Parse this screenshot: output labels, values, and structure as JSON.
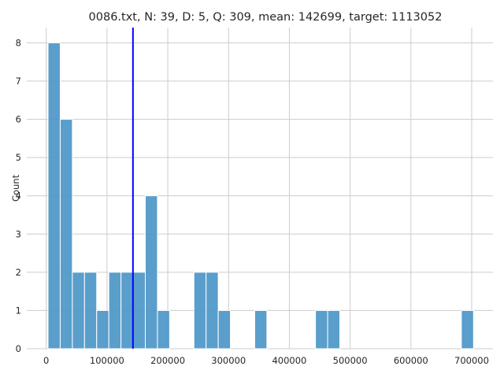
{
  "chart_data": {
    "type": "bar",
    "subtype": "histogram",
    "title": "0086.txt, N: 39, D: 5, Q: 309, mean: 142699, target: 1113052",
    "xlabel": "",
    "ylabel": "Count",
    "xlim": [
      -32000,
      735000
    ],
    "ylim": [
      0,
      8.4
    ],
    "grid": true,
    "bar_color": "#4c96c8",
    "vline_color": "#0000ff",
    "x_ticks": [
      {
        "value": 0,
        "label": "0"
      },
      {
        "value": 100000,
        "label": "100000"
      },
      {
        "value": 200000,
        "label": "200000"
      },
      {
        "value": 300000,
        "label": "300000"
      },
      {
        "value": 400000,
        "label": "400000"
      },
      {
        "value": 500000,
        "label": "500000"
      },
      {
        "value": 600000,
        "label": "600000"
      },
      {
        "value": 700000,
        "label": "700000"
      }
    ],
    "y_ticks": [
      {
        "value": 0,
        "label": "0"
      },
      {
        "value": 1,
        "label": "1"
      },
      {
        "value": 2,
        "label": "2"
      },
      {
        "value": 3,
        "label": "3"
      },
      {
        "value": 4,
        "label": "4"
      },
      {
        "value": 5,
        "label": "5"
      },
      {
        "value": 6,
        "label": "6"
      },
      {
        "value": 7,
        "label": "7"
      },
      {
        "value": 8,
        "label": "8"
      }
    ],
    "bins": [
      {
        "x0": 3000,
        "x1": 23000,
        "count": 8
      },
      {
        "x0": 23000,
        "x1": 43000,
        "count": 6
      },
      {
        "x0": 43000,
        "x1": 63000,
        "count": 2
      },
      {
        "x0": 63000,
        "x1": 83000,
        "count": 2
      },
      {
        "x0": 83000,
        "x1": 103000,
        "count": 1
      },
      {
        "x0": 103000,
        "x1": 123000,
        "count": 2
      },
      {
        "x0": 123000,
        "x1": 143000,
        "count": 2
      },
      {
        "x0": 143000,
        "x1": 163000,
        "count": 2
      },
      {
        "x0": 163000,
        "x1": 183000,
        "count": 4
      },
      {
        "x0": 183000,
        "x1": 203000,
        "count": 1
      },
      {
        "x0": 243000,
        "x1": 263000,
        "count": 2
      },
      {
        "x0": 263000,
        "x1": 283000,
        "count": 2
      },
      {
        "x0": 283000,
        "x1": 303000,
        "count": 1
      },
      {
        "x0": 343000,
        "x1": 363000,
        "count": 1
      },
      {
        "x0": 443000,
        "x1": 463000,
        "count": 1
      },
      {
        "x0": 463000,
        "x1": 483000,
        "count": 1
      },
      {
        "x0": 683000,
        "x1": 703000,
        "count": 1
      }
    ],
    "mean_line": {
      "x": 142699
    }
  }
}
